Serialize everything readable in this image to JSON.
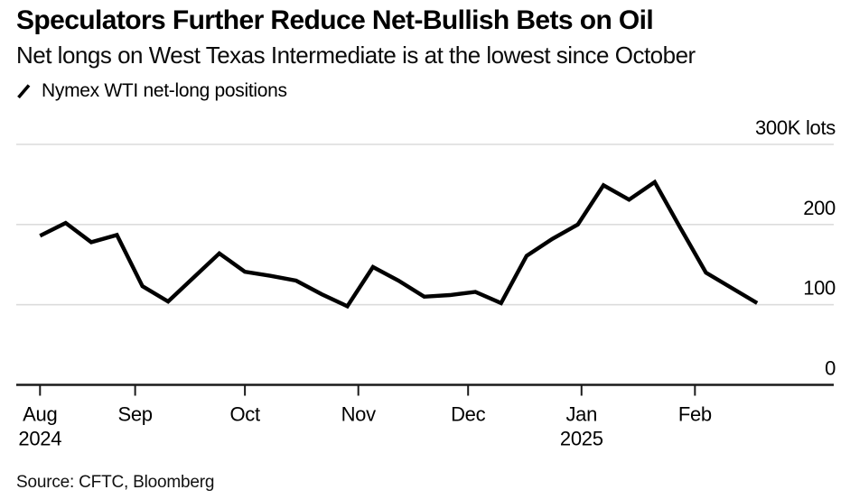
{
  "header": {
    "title": "Speculators Further Reduce Net-Bullish Bets on Oil",
    "subtitle": "Net longs on West Texas Intermediate is at the lowest since October"
  },
  "legend": {
    "series_label": "Nymex WTI net-long positions"
  },
  "footer": {
    "source": "Source: CFTC, Bloomberg"
  },
  "colors": {
    "background": "#ffffff",
    "series_line": "#000000",
    "gridline": "#dcdcdc",
    "zero_axis": "#1a1a1a",
    "text": "#000000"
  },
  "chart_data": {
    "type": "line",
    "title": "Nymex WTI net-long positions",
    "unit": "K lots",
    "ylabel": "",
    "xlabel": "",
    "ylim": [
      0,
      300
    ],
    "grid": "horizontal-only",
    "legend_position": "top-left",
    "series": [
      {
        "name": "Nymex WTI net-long positions",
        "x_dates": [
          "2024-08-06",
          "2024-08-13",
          "2024-08-20",
          "2024-08-27",
          "2024-09-03",
          "2024-09-10",
          "2024-09-17",
          "2024-09-24",
          "2024-10-01",
          "2024-10-08",
          "2024-10-15",
          "2024-10-22",
          "2024-10-29",
          "2024-11-05",
          "2024-11-12",
          "2024-11-19",
          "2024-11-26",
          "2024-12-03",
          "2024-12-10",
          "2024-12-17",
          "2024-12-24",
          "2024-12-31",
          "2025-01-07",
          "2025-01-14",
          "2025-01-21",
          "2025-01-28",
          "2025-02-04",
          "2025-02-11",
          "2025-02-18"
        ],
        "values": [
          186,
          202,
          178,
          187,
          123,
          104,
          134,
          164,
          141,
          136,
          130,
          113,
          98,
          147,
          130,
          110,
          112,
          116,
          102,
          161,
          182,
          200,
          249,
          231,
          253,
          196,
          140,
          121,
          102
        ]
      }
    ],
    "y_ticks": [
      {
        "value": 300,
        "label": "300K lots"
      },
      {
        "value": 200,
        "label": "200"
      },
      {
        "value": 100,
        "label": "100"
      },
      {
        "value": 0,
        "label": "0"
      }
    ],
    "x_ticks": [
      {
        "date": "2024-08-06",
        "label": "Aug",
        "sublabel": "2024"
      },
      {
        "date": "2024-09-01",
        "label": "Sep",
        "sublabel": ""
      },
      {
        "date": "2024-10-01",
        "label": "Oct",
        "sublabel": ""
      },
      {
        "date": "2024-11-01",
        "label": "Nov",
        "sublabel": ""
      },
      {
        "date": "2024-12-01",
        "label": "Dec",
        "sublabel": ""
      },
      {
        "date": "2025-01-01",
        "label": "Jan",
        "sublabel": "2025"
      },
      {
        "date": "2025-02-01",
        "label": "Feb",
        "sublabel": ""
      }
    ]
  }
}
